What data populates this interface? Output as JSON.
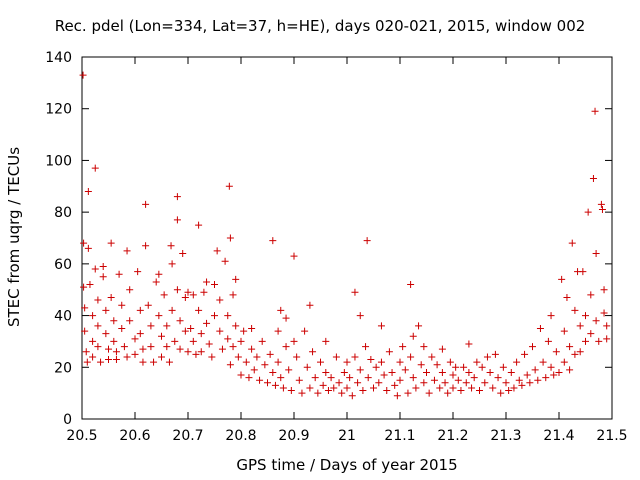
{
  "chart_data": {
    "type": "scatter",
    "title": "Rec. pdel (Lon=334, Lat=37, h=HE), days 020-021, 2015, window 002",
    "xlabel": "GPS time / Days of year 2015",
    "ylabel": "STEC from uqrg / TECUs",
    "xlim": [
      20.5,
      21.5
    ],
    "ylim": [
      0,
      140
    ],
    "xticks": [
      20.5,
      20.6,
      20.7,
      20.8,
      20.9,
      21.0,
      21.1,
      21.2,
      21.3,
      21.4,
      21.5
    ],
    "xtick_labels": [
      "20.5",
      "20.6",
      "20.7",
      "20.8",
      "20.9",
      "21",
      "21.1",
      "21.2",
      "21.3",
      "21.4",
      "21.5"
    ],
    "yticks": [
      0,
      20,
      40,
      60,
      80,
      100,
      120,
      140
    ],
    "ytick_labels": [
      "0",
      "20",
      "40",
      "60",
      "80",
      "100",
      "120",
      "140"
    ],
    "marker": "+",
    "color": "#cc0000",
    "grid": false,
    "series": [
      {
        "name": "STEC",
        "points": [
          [
            20.502,
            133
          ],
          [
            20.503,
            68
          ],
          [
            20.503,
            51
          ],
          [
            20.512,
            88
          ],
          [
            20.512,
            66
          ],
          [
            20.525,
            97
          ],
          [
            20.505,
            43
          ],
          [
            20.505,
            34
          ],
          [
            20.508,
            26
          ],
          [
            20.51,
            22
          ],
          [
            20.515,
            52
          ],
          [
            20.52,
            40
          ],
          [
            20.52,
            30
          ],
          [
            20.52,
            24
          ],
          [
            20.525,
            58
          ],
          [
            20.53,
            46
          ],
          [
            20.53,
            36
          ],
          [
            20.53,
            28
          ],
          [
            20.535,
            22
          ],
          [
            20.54,
            59
          ],
          [
            20.54,
            55
          ],
          [
            20.545,
            42
          ],
          [
            20.545,
            33
          ],
          [
            20.55,
            27
          ],
          [
            20.55,
            23
          ],
          [
            20.555,
            68
          ],
          [
            20.555,
            47
          ],
          [
            20.56,
            38
          ],
          [
            20.56,
            30
          ],
          [
            20.565,
            26
          ],
          [
            20.565,
            23
          ],
          [
            20.57,
            56
          ],
          [
            20.575,
            44
          ],
          [
            20.575,
            35
          ],
          [
            20.58,
            28
          ],
          [
            20.585,
            24
          ],
          [
            20.585,
            65
          ],
          [
            20.59,
            50
          ],
          [
            20.59,
            38
          ],
          [
            20.6,
            31
          ],
          [
            20.6,
            25
          ],
          [
            20.605,
            57
          ],
          [
            20.61,
            42
          ],
          [
            20.61,
            33
          ],
          [
            20.615,
            27
          ],
          [
            20.615,
            22
          ],
          [
            20.62,
            83
          ],
          [
            20.62,
            67
          ],
          [
            20.625,
            44
          ],
          [
            20.63,
            36
          ],
          [
            20.63,
            28
          ],
          [
            20.635,
            22
          ],
          [
            20.64,
            53
          ],
          [
            20.645,
            56
          ],
          [
            20.645,
            40
          ],
          [
            20.65,
            32
          ],
          [
            20.65,
            24
          ],
          [
            20.655,
            48
          ],
          [
            20.66,
            36
          ],
          [
            20.66,
            28
          ],
          [
            20.665,
            22
          ],
          [
            20.668,
            67
          ],
          [
            20.67,
            60
          ],
          [
            20.67,
            42
          ],
          [
            20.675,
            30
          ],
          [
            20.68,
            86
          ],
          [
            20.68,
            77
          ],
          [
            20.68,
            50
          ],
          [
            20.685,
            38
          ],
          [
            20.685,
            27
          ],
          [
            20.69,
            64
          ],
          [
            20.695,
            47
          ],
          [
            20.695,
            34
          ],
          [
            20.7,
            26
          ],
          [
            20.7,
            49
          ],
          [
            20.705,
            35
          ],
          [
            20.71,
            48
          ],
          [
            20.71,
            30
          ],
          [
            20.715,
            25
          ],
          [
            20.72,
            75
          ],
          [
            20.72,
            42
          ],
          [
            20.725,
            33
          ],
          [
            20.725,
            26
          ],
          [
            20.73,
            49
          ],
          [
            20.735,
            53
          ],
          [
            20.735,
            37
          ],
          [
            20.74,
            29
          ],
          [
            20.745,
            24
          ],
          [
            20.75,
            52
          ],
          [
            20.75,
            40
          ],
          [
            20.755,
            65
          ],
          [
            20.76,
            46
          ],
          [
            20.76,
            34
          ],
          [
            20.765,
            27
          ],
          [
            20.77,
            61
          ],
          [
            20.775,
            40
          ],
          [
            20.775,
            31
          ],
          [
            20.778,
            90
          ],
          [
            20.78,
            70
          ],
          [
            20.78,
            21
          ],
          [
            20.785,
            48
          ],
          [
            20.785,
            28
          ],
          [
            20.79,
            54
          ],
          [
            20.79,
            36
          ],
          [
            20.795,
            24
          ],
          [
            20.8,
            30
          ],
          [
            20.8,
            17
          ],
          [
            20.805,
            34
          ],
          [
            20.81,
            22
          ],
          [
            20.815,
            16
          ],
          [
            20.82,
            35
          ],
          [
            20.82,
            27
          ],
          [
            20.825,
            19
          ],
          [
            20.83,
            24
          ],
          [
            20.835,
            15
          ],
          [
            20.84,
            30
          ],
          [
            20.845,
            21
          ],
          [
            20.85,
            14
          ],
          [
            20.855,
            25
          ],
          [
            20.86,
            69
          ],
          [
            20.86,
            18
          ],
          [
            20.865,
            13
          ],
          [
            20.87,
            34
          ],
          [
            20.87,
            22
          ],
          [
            20.875,
            42
          ],
          [
            20.875,
            16
          ],
          [
            20.88,
            12
          ],
          [
            20.885,
            39
          ],
          [
            20.885,
            28
          ],
          [
            20.89,
            19
          ],
          [
            20.895,
            11
          ],
          [
            20.9,
            63
          ],
          [
            20.9,
            30
          ],
          [
            20.905,
            24
          ],
          [
            20.91,
            15
          ],
          [
            20.915,
            10
          ],
          [
            20.92,
            34
          ],
          [
            20.925,
            20
          ],
          [
            20.93,
            44
          ],
          [
            20.93,
            12
          ],
          [
            20.935,
            26
          ],
          [
            20.94,
            16
          ],
          [
            20.945,
            10
          ],
          [
            20.95,
            22
          ],
          [
            20.955,
            13
          ],
          [
            20.96,
            30
          ],
          [
            20.96,
            18
          ],
          [
            20.965,
            11
          ],
          [
            20.97,
            16
          ],
          [
            20.975,
            12
          ],
          [
            20.98,
            24
          ],
          [
            20.985,
            14
          ],
          [
            20.99,
            10
          ],
          [
            20.995,
            18
          ],
          [
            21.0,
            22
          ],
          [
            21.0,
            12
          ],
          [
            21.005,
            16
          ],
          [
            21.01,
            9
          ],
          [
            21.015,
            49
          ],
          [
            21.015,
            24
          ],
          [
            21.02,
            14
          ],
          [
            21.025,
            40
          ],
          [
            21.025,
            19
          ],
          [
            21.03,
            11
          ],
          [
            21.035,
            28
          ],
          [
            21.038,
            69
          ],
          [
            21.04,
            16
          ],
          [
            21.045,
            23
          ],
          [
            21.05,
            12
          ],
          [
            21.055,
            20
          ],
          [
            21.06,
            14
          ],
          [
            21.065,
            36
          ],
          [
            21.065,
            22
          ],
          [
            21.07,
            17
          ],
          [
            21.075,
            11
          ],
          [
            21.08,
            26
          ],
          [
            21.085,
            18
          ],
          [
            21.09,
            13
          ],
          [
            21.095,
            9
          ],
          [
            21.1,
            22
          ],
          [
            21.1,
            15
          ],
          [
            21.105,
            28
          ],
          [
            21.11,
            19
          ],
          [
            21.115,
            10
          ],
          [
            21.12,
            52
          ],
          [
            21.12,
            24
          ],
          [
            21.125,
            32
          ],
          [
            21.125,
            16
          ],
          [
            21.13,
            12
          ],
          [
            21.135,
            36
          ],
          [
            21.14,
            21
          ],
          [
            21.145,
            28
          ],
          [
            21.145,
            14
          ],
          [
            21.15,
            18
          ],
          [
            21.155,
            10
          ],
          [
            21.16,
            24
          ],
          [
            21.165,
            15
          ],
          [
            21.17,
            21
          ],
          [
            21.175,
            12
          ],
          [
            21.18,
            27
          ],
          [
            21.18,
            18
          ],
          [
            21.185,
            14
          ],
          [
            21.19,
            10
          ],
          [
            21.195,
            22
          ],
          [
            21.2,
            17
          ],
          [
            21.2,
            12
          ],
          [
            21.205,
            20
          ],
          [
            21.21,
            15
          ],
          [
            21.215,
            11
          ],
          [
            21.22,
            20
          ],
          [
            21.225,
            14
          ],
          [
            21.23,
            18
          ],
          [
            21.23,
            29
          ],
          [
            21.235,
            12
          ],
          [
            21.24,
            16
          ],
          [
            21.245,
            22
          ],
          [
            21.25,
            11
          ],
          [
            21.255,
            20
          ],
          [
            21.26,
            14
          ],
          [
            21.265,
            24
          ],
          [
            21.27,
            18
          ],
          [
            21.275,
            12
          ],
          [
            21.28,
            25
          ],
          [
            21.285,
            16
          ],
          [
            21.29,
            10
          ],
          [
            21.295,
            20
          ],
          [
            21.3,
            14
          ],
          [
            21.305,
            11
          ],
          [
            21.31,
            18
          ],
          [
            21.315,
            12
          ],
          [
            21.32,
            22
          ],
          [
            21.325,
            15
          ],
          [
            21.33,
            13
          ],
          [
            21.335,
            25
          ],
          [
            21.34,
            17
          ],
          [
            21.345,
            14
          ],
          [
            21.35,
            28
          ],
          [
            21.355,
            19
          ],
          [
            21.36,
            15
          ],
          [
            21.365,
            35
          ],
          [
            21.37,
            22
          ],
          [
            21.375,
            16
          ],
          [
            21.38,
            30
          ],
          [
            21.385,
            40
          ],
          [
            21.385,
            20
          ],
          [
            21.39,
            17
          ],
          [
            21.395,
            26
          ],
          [
            21.4,
            18
          ],
          [
            21.405,
            54
          ],
          [
            21.41,
            34
          ],
          [
            21.41,
            22
          ],
          [
            21.415,
            47
          ],
          [
            21.42,
            28
          ],
          [
            21.42,
            19
          ],
          [
            21.425,
            68
          ],
          [
            21.43,
            42
          ],
          [
            21.43,
            25
          ],
          [
            21.435,
            57
          ],
          [
            21.44,
            36
          ],
          [
            21.44,
            26
          ],
          [
            21.445,
            57
          ],
          [
            21.45,
            40
          ],
          [
            21.45,
            30
          ],
          [
            21.455,
            80
          ],
          [
            21.46,
            48
          ],
          [
            21.46,
            33
          ],
          [
            21.465,
            93
          ],
          [
            21.468,
            119
          ],
          [
            21.47,
            64
          ],
          [
            21.47,
            38
          ],
          [
            21.475,
            30
          ],
          [
            21.48,
            83
          ],
          [
            21.482,
            81
          ],
          [
            21.485,
            50
          ],
          [
            21.485,
            41
          ],
          [
            21.49,
            36
          ],
          [
            21.49,
            31
          ]
        ]
      }
    ]
  }
}
